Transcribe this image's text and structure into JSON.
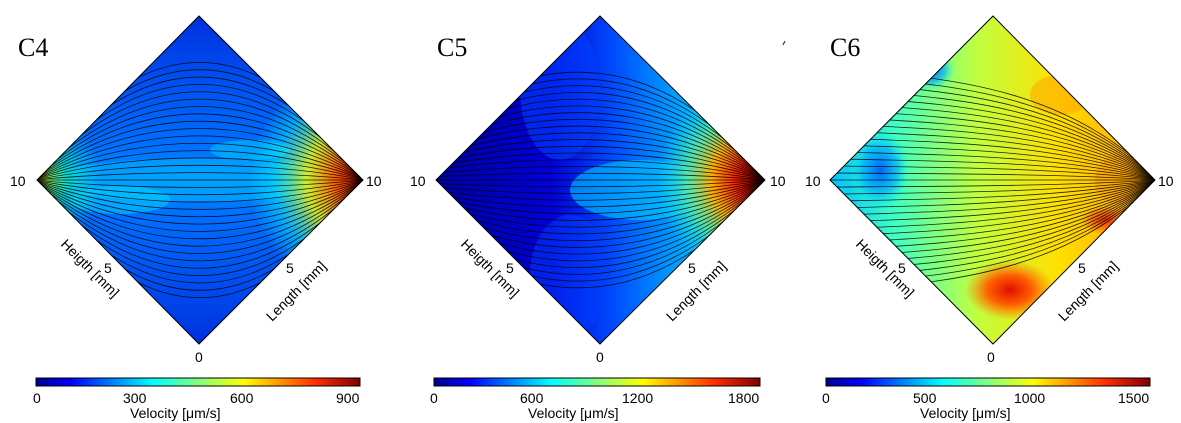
{
  "colormap": [
    "#00008f",
    "#0000ff",
    "#0080ff",
    "#00ffff",
    "#80ff80",
    "#ffff00",
    "#ff8000",
    "#ff0000",
    "#800000"
  ],
  "chart_data": [
    {
      "type": "heatmap",
      "panel_label": "C4",
      "corner_left": "10",
      "corner_right": "10",
      "corner_bottom": "0",
      "xlabel": "Heigth [mm]",
      "ylabel": "Length [mm]",
      "xlabel_mid_tick": "5",
      "ylabel_mid_tick": "5",
      "colorbar": {
        "label": "Velocity [μm/s]",
        "ticks": [
          "0",
          "300",
          "600",
          "900"
        ],
        "range": [
          0,
          900
        ]
      },
      "max_location": "right corner",
      "max_value": 900
    },
    {
      "type": "heatmap",
      "panel_label": "C5",
      "corner_left": "10",
      "corner_right": "10",
      "corner_bottom": "0",
      "xlabel": "Heigth [mm]",
      "ylabel": "Length [mm]",
      "xlabel_mid_tick": "5",
      "ylabel_mid_tick": "5",
      "colorbar": {
        "label": "Velocity [μm/s]",
        "ticks": [
          "0",
          "600",
          "1200",
          "1800"
        ],
        "range": [
          0,
          1800
        ]
      },
      "max_location": "right corner",
      "max_value": 1800
    },
    {
      "type": "heatmap",
      "panel_label": "C6",
      "corner_left": "10",
      "corner_right": "10",
      "corner_bottom": "0",
      "xlabel": "Heigth [mm]",
      "ylabel": "Length [mm]",
      "xlabel_mid_tick": "5",
      "ylabel_mid_tick": "5",
      "colorbar": {
        "label": "Velocity [μm/s]",
        "ticks": [
          "0",
          "500",
          "1000",
          "1500"
        ],
        "range": [
          0,
          1500
        ]
      },
      "max_location": "right side",
      "max_value": 1500
    }
  ]
}
